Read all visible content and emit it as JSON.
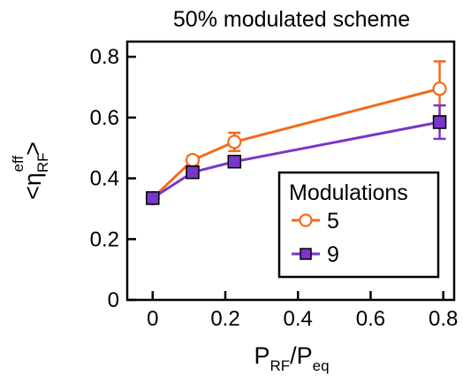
{
  "chart_data": {
    "type": "line",
    "title": "50% modulated scheme",
    "xlabel": {
      "main": "P",
      "sub1": "RF",
      "sep": "/P",
      "sub2": "eq"
    },
    "ylabel": {
      "pre": "<η",
      "sub": "RF",
      "sup": "eff",
      "post": ">"
    },
    "xlim": [
      -0.07,
      0.83
    ],
    "ylim": [
      0,
      0.85
    ],
    "xticks": [
      0,
      0.2,
      0.4,
      0.6,
      0.8
    ],
    "xtick_labels": [
      "0",
      "0.2",
      "0.4",
      "0.6",
      "0.8"
    ],
    "yticks": [
      0,
      0.2,
      0.4,
      0.6,
      0.8
    ],
    "ytick_labels": [
      "0",
      "0.2",
      "0.4",
      "0.6",
      "0.8"
    ],
    "grid": false,
    "legend": {
      "title": "Modulations",
      "position": "bottom-right"
    },
    "series": [
      {
        "name": "5",
        "color": "#f26b1d",
        "marker": "open-circle",
        "x": [
          0,
          0.11,
          0.225,
          0.79
        ],
        "y": [
          0.335,
          0.46,
          0.52,
          0.695
        ],
        "err": [
          0,
          0.012,
          0.03,
          0.09
        ]
      },
      {
        "name": "9",
        "color": "#7a35c9",
        "marker": "filled-square",
        "x": [
          0,
          0.11,
          0.225,
          0.79
        ],
        "y": [
          0.335,
          0.42,
          0.455,
          0.585
        ],
        "err": [
          0,
          0,
          0,
          0.055
        ]
      }
    ]
  }
}
